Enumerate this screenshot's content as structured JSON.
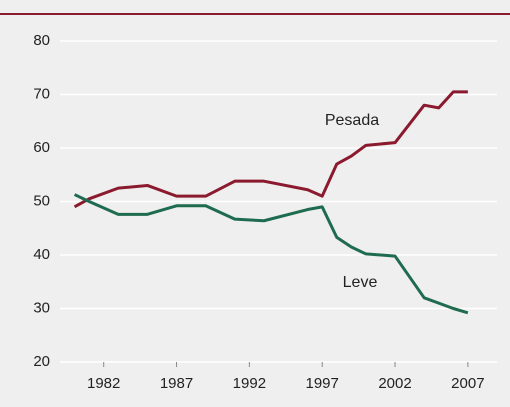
{
  "chart_data": {
    "type": "line",
    "x": [
      1980,
      1981,
      1983,
      1985,
      1987,
      1989,
      1991,
      1993,
      1996,
      1997,
      1998,
      1999,
      2000,
      2002,
      2004,
      2005,
      2006,
      2007
    ],
    "series": [
      {
        "name": "Pesada",
        "color": "#8b1a2e",
        "values": [
          49,
          50.5,
          52.5,
          53,
          51,
          51,
          53.8,
          53.8,
          52.2,
          51,
          57,
          58.5,
          60.5,
          61,
          68,
          67.5,
          70.5,
          70.5
        ]
      },
      {
        "name": "Leve",
        "color": "#1e6b4f",
        "values": [
          51.3,
          50,
          47.6,
          47.6,
          49.2,
          49.2,
          46.7,
          46.4,
          48.5,
          49,
          43.3,
          41.5,
          40.2,
          39.8,
          32,
          31,
          30,
          29.2
        ]
      }
    ],
    "xlim": [
      1979,
      2009
    ],
    "xticks": [
      1982,
      1987,
      1992,
      1997,
      2002,
      2007
    ],
    "ylim": [
      20,
      80
    ],
    "yticks": [
      20,
      30,
      40,
      50,
      60,
      70,
      80
    ],
    "grid": true
  }
}
